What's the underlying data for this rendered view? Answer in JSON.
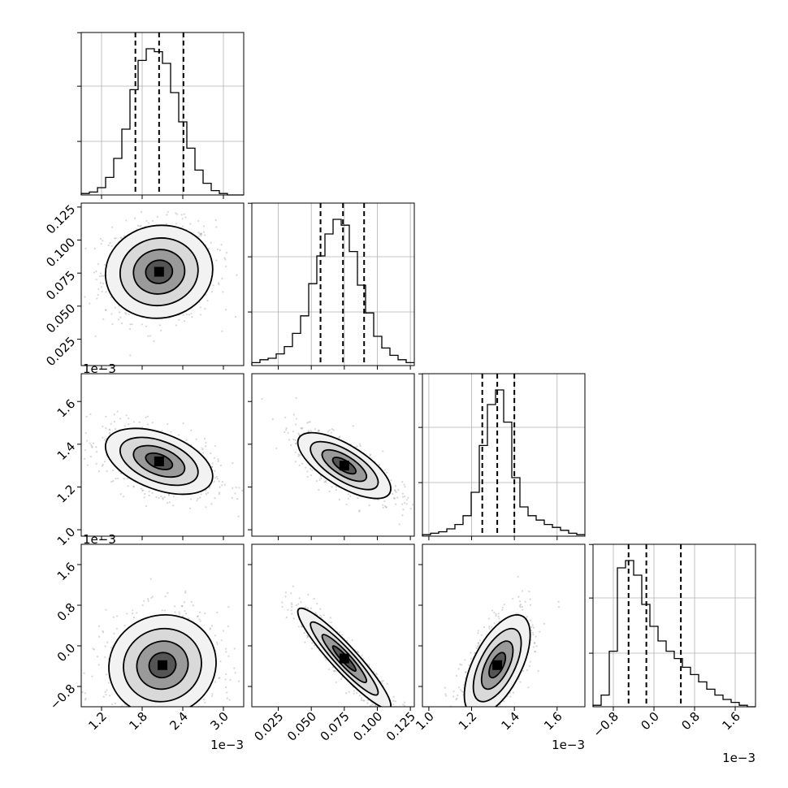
{
  "chart_data": {
    "type": "corner",
    "layout": {
      "n": 4
    },
    "parameters": [
      {
        "index": 0,
        "offset_label": "1e−3",
        "range": [
          0.0009,
          0.0033
        ],
        "ticks": [
          0.0012,
          0.0018,
          0.0024,
          0.003
        ],
        "tick_labels": [
          "1.2",
          "1.8",
          "2.4",
          "3.0"
        ],
        "mean": 0.00205,
        "sd": 0.00036,
        "quantiles": [
          0.0017,
          0.00205,
          0.00241
        ]
      },
      {
        "index": 1,
        "offset_label": "",
        "range": [
          0.005,
          0.128
        ],
        "ticks": [
          0.025,
          0.05,
          0.075,
          0.1,
          0.125
        ],
        "tick_labels": [
          "0.025",
          "0.050",
          "0.075",
          "0.100",
          "0.125"
        ],
        "mean": 0.074,
        "sd": 0.016,
        "quantiles": [
          0.057,
          0.074,
          0.09
        ]
      },
      {
        "index": 2,
        "offset_label": "1e−3",
        "range": [
          0.00097,
          0.00173
        ],
        "ticks": [
          0.001,
          0.0012,
          0.0014,
          0.0016
        ],
        "tick_labels": [
          "1.0",
          "1.2",
          "1.4",
          "1.6"
        ],
        "mean": 0.00132,
        "sd": 7e-05,
        "quantiles": [
          0.00125,
          0.00132,
          0.0014
        ]
      },
      {
        "index": 3,
        "offset_label": "1e−3",
        "range": [
          -0.0012,
          0.002
        ],
        "ticks": [
          -0.0008,
          0.0,
          0.0008,
          0.0016
        ],
        "tick_labels": [
          "−0.8",
          "0.0",
          "0.8",
          "1.6"
        ],
        "mean": -0.00025,
        "sd": 0.00045,
        "quantiles": [
          -0.0005,
          -0.00015,
          0.00053
        ]
      }
    ],
    "histograms": [
      {
        "param": 0,
        "bin_start": 0.0009,
        "bin_width": 0.00012,
        "counts": [
          1,
          2,
          5,
          12,
          25,
          45,
          72,
          92,
          100,
          98,
          90,
          70,
          50,
          32,
          17,
          8,
          3,
          1,
          0,
          0
        ]
      },
      {
        "param": 1,
        "bin_start": 0.005,
        "bin_width": 0.00615,
        "counts": [
          2,
          4,
          5,
          8,
          13,
          22,
          34,
          56,
          75,
          90,
          100,
          96,
          78,
          55,
          36,
          20,
          12,
          7,
          4,
          2
        ]
      },
      {
        "param": 2,
        "bin_start": 0.00097,
        "bin_width": 3.8e-05,
        "counts": [
          1,
          2,
          3,
          5,
          8,
          14,
          30,
          62,
          90,
          100,
          78,
          40,
          20,
          14,
          11,
          8,
          6,
          4,
          2,
          1
        ]
      },
      {
        "param": 3,
        "bin_start": -0.0012,
        "bin_width": 0.00016,
        "counts": [
          1,
          8,
          38,
          95,
          100,
          90,
          70,
          55,
          45,
          38,
          33,
          27,
          22,
          17,
          12,
          8,
          5,
          3,
          1,
          0
        ]
      }
    ],
    "pairs": [
      {
        "x": 0,
        "y": 1,
        "center": [
          0.00205,
          0.076
        ],
        "corr": 0.05
      },
      {
        "x": 0,
        "y": 2,
        "center": [
          0.00205,
          0.00132
        ],
        "corr": -0.45
      },
      {
        "x": 1,
        "y": 2,
        "center": [
          0.075,
          0.0013
        ],
        "corr": -0.7
      },
      {
        "x": 0,
        "y": 3,
        "center": [
          0.0021,
          -0.00038
        ],
        "corr": 0.05
      },
      {
        "x": 1,
        "y": 3,
        "center": [
          0.075,
          -0.00025
        ],
        "corr": -0.93
      },
      {
        "x": 2,
        "y": 3,
        "center": [
          0.00132,
          -0.00038
        ],
        "corr": 0.6
      }
    ],
    "grid": true,
    "colors": {
      "line": "#000000",
      "scatter": "#8c8c8c",
      "grid": "#b0b0b0"
    }
  }
}
